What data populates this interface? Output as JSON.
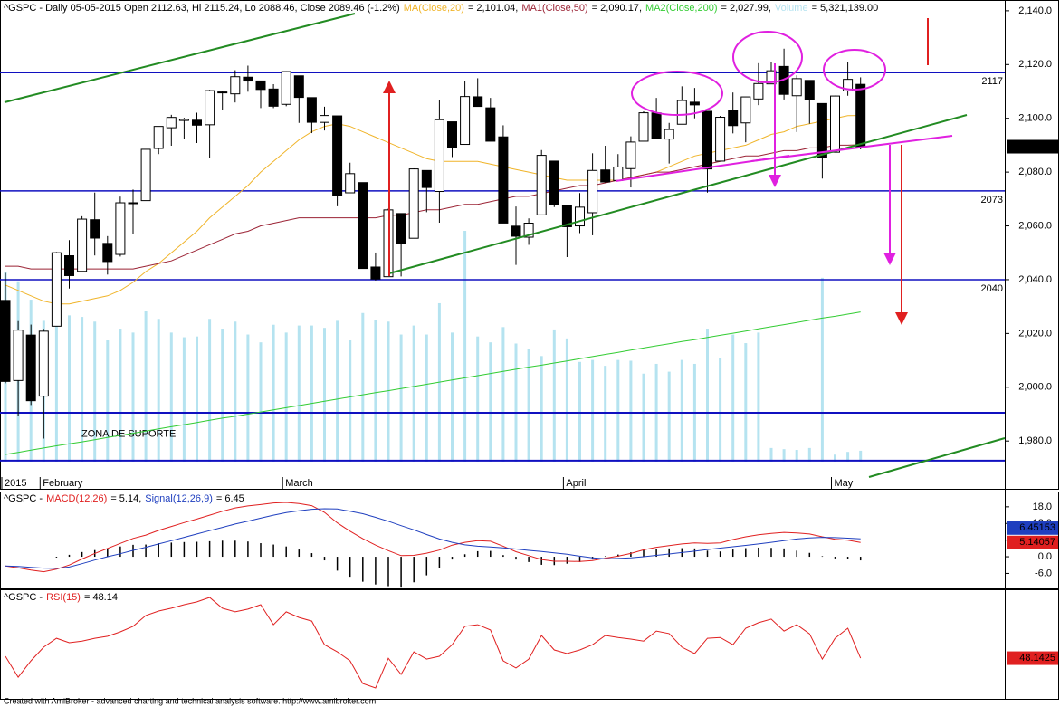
{
  "chart_data": [
    {
      "type": "candlestick",
      "title": "^GSPC - Daily 05-05-2015 Open 2112.63, Hi 2115.24, Lo 2088.46, Close 2089.46 (-1.2%)",
      "categories": [
        "2015",
        null,
        null,
        "February",
        null,
        null,
        null,
        null,
        null,
        null,
        null,
        null,
        null,
        null,
        null,
        null,
        null,
        null,
        null,
        null,
        null,
        null,
        "March",
        null,
        null,
        null,
        null,
        null,
        null,
        null,
        null,
        null,
        null,
        null,
        null,
        null,
        null,
        null,
        null,
        null,
        null,
        null,
        null,
        null,
        "April",
        null,
        null,
        null,
        null,
        null,
        null,
        null,
        null,
        null,
        null,
        null,
        null,
        null,
        null,
        null,
        null,
        null,
        null,
        null,
        null,
        "May",
        null,
        null
      ],
      "open": [
        2032.3,
        2002.5,
        2019.4,
        1996.7,
        2022.7,
        2048.9,
        2043.1,
        2062.3,
        2053.5,
        2049.4,
        2068.6,
        2069.4,
        2088.8,
        2096.5,
        2099.2,
        2099.3,
        2097.6,
        2109.8,
        2109.1,
        2115.3,
        2113.9,
        2110.9,
        2105.2,
        2115.8,
        2107.7,
        2098.5,
        2100.9,
        2072.3,
        2076.1,
        2044.7,
        2041.1,
        2064.6,
        2055.4,
        2080.6,
        2072.8,
        2098.7,
        2090.3,
        2108.0,
        2103.9,
        2093.1,
        2059.9,
        2055.8,
        2064.1,
        2084.1,
        2067.6,
        2060.0,
        2064.9,
        2080.8,
        2076.9,
        2081.3,
        2091.5,
        2102.0,
        2092.3,
        2097.8,
        2106.0,
        2102.6,
        2084.1,
        2102.8,
        2098.3,
        2107.2,
        2112.8,
        2119.3,
        2108.4,
        2114.1,
        2105.5,
        2087.4,
        2110.2,
        2112.63
      ],
      "high": [
        2042.5,
        2024.6,
        2023.3,
        2021.7,
        2050.3,
        2054.7,
        2063.6,
        2072.4,
        2056.2,
        2070.9,
        2073.5,
        2088.5,
        2097.0,
        2101.3,
        2100.2,
        2102.1,
        2110.6,
        2110.1,
        2117.9,
        2119.6,
        2113.9,
        2112.7,
        2117.5,
        2115.8,
        2107.7,
        2104.3,
        2100.9,
        2083.5,
        2076.1,
        2050.1,
        2066.4,
        2064.6,
        2081.4,
        2080.6,
        2106.9,
        2098.7,
        2113.9,
        2114.9,
        2107.6,
        2097.4,
        2067.2,
        2062.8,
        2088.2,
        2084.1,
        2067.6,
        2072.2,
        2087.0,
        2089.8,
        2086.7,
        2093.3,
        2102.6,
        2107.6,
        2098.3,
        2111.9,
        2111.3,
        2102.6,
        2100.9,
        2109.6,
        2108.0,
        2120.5,
        2120.9,
        2125.9,
        2116.0,
        2114.1,
        2105.5,
        2108.4,
        2120.9,
        2115.24
      ],
      "low": [
        2001.5,
        1989.2,
        1993.4,
        1980.9,
        2022.7,
        2036.7,
        2043.1,
        2049.0,
        2041.9,
        2048.6,
        2057.0,
        2069.4,
        2086.7,
        2089.8,
        2092.2,
        2090.8,
        2085.4,
        2103.0,
        2105.9,
        2109.9,
        2103.8,
        2103.8,
        2104.5,
        2098.3,
        2094.5,
        2095.5,
        2067.3,
        2072.2,
        2044.1,
        2039.7,
        2041.1,
        2041.2,
        2055.4,
        2065.1,
        2061.2,
        2085.6,
        2090.3,
        2104.4,
        2091.5,
        2061.0,
        2045.5,
        2052.96,
        2064.1,
        2067.0,
        2048.4,
        2057.3,
        2056.5,
        2076.1,
        2076.9,
        2074.3,
        2091.5,
        2092.3,
        2083.2,
        2097.8,
        2100.0,
        2072.4,
        2084.1,
        2094.4,
        2091.1,
        2104.9,
        2112.8,
        2107.0,
        2094.9,
        2098.0,
        2077.6,
        2087.4,
        2108.4,
        2088.46
      ],
      "close": [
        2002.16,
        2021.25,
        1994.99,
        2020.85,
        2050.03,
        2041.51,
        2062.52,
        2055.47,
        2046.74,
        2068.59,
        2068.53,
        2088.48,
        2096.99,
        2100.34,
        2099.68,
        2097.45,
        2110.3,
        2109.66,
        2115.48,
        2113.86,
        2110.74,
        2104.5,
        2117.39,
        2107.78,
        2098.53,
        2101.04,
        2071.26,
        2079.43,
        2044.16,
        2040.24,
        2065.95,
        2053.4,
        2081.19,
        2074.28,
        2099.5,
        2089.27,
        2108.1,
        2104.42,
        2091.5,
        2061.05,
        2056.15,
        2061.02,
        2086.24,
        2067.89,
        2059.69,
        2066.96,
        2080.62,
        2076.33,
        2081.9,
        2091.18,
        2102.06,
        2092.43,
        2095.84,
        2106.63,
        2104.99,
        2081.18,
        2100.4,
        2097.29,
        2107.96,
        2112.93,
        2117.69,
        2108.92,
        2114.76,
        2106.85,
        2085.51,
        2108.29,
        2114.49,
        2089.46
      ],
      "close_label": "2,089.46",
      "ylim": [
        1966.6,
        2144
      ],
      "yticks": [
        {
          "value": 2140,
          "label": "2,140.0"
        },
        {
          "value": 2120,
          "label": "2,120.0"
        },
        {
          "value": 2100,
          "label": "2,100.0"
        },
        {
          "value": 2080,
          "label": "2,080.0"
        },
        {
          "value": 2060,
          "label": "2,060.0"
        },
        {
          "value": 2040,
          "label": "2,040.0"
        },
        {
          "value": 2020,
          "label": "2,020.0"
        },
        {
          "value": 2000,
          "label": "2,000.0"
        },
        {
          "value": 1980,
          "label": "1,980.0"
        }
      ],
      "levels": [
        2117,
        2073,
        2040
      ],
      "support_lines": [
        1990.5,
        1972.7
      ],
      "support_label": "ZONA DE SUPORTE",
      "overlays": [
        {
          "name": "MA(Close,20)",
          "color": "#f0b429",
          "value_label": "= 2,101.04,",
          "values": [
            2038,
            2036,
            2034,
            2032,
            2031,
            2031,
            2032,
            2033,
            2034,
            2036,
            2039,
            2043,
            2046,
            2050,
            2054,
            2058,
            2063,
            2067,
            2071,
            2075,
            2080,
            2084,
            2088,
            2092,
            2095,
            2097,
            2098,
            2097,
            2095,
            2093,
            2091,
            2089,
            2087,
            2085,
            2084,
            2084,
            2084,
            2084,
            2083,
            2082,
            2081,
            2080,
            2079,
            2078,
            2077,
            2077,
            2077,
            2077,
            2077,
            2078,
            2079,
            2080,
            2082,
            2084,
            2086,
            2087,
            2088,
            2089,
            2090,
            2092,
            2094,
            2095,
            2097,
            2098,
            2099,
            2100,
            2101,
            2101.04
          ]
        },
        {
          "name": "MA1(Close,50)",
          "color": "#9b2335",
          "value_label": "= 2,090.17,",
          "values": [
            2045,
            2045,
            2044,
            2044,
            2044,
            2044,
            2044,
            2044,
            2044,
            2044,
            2044,
            2045,
            2046,
            2047,
            2049,
            2051,
            2053,
            2055,
            2057,
            2058,
            2060,
            2061,
            2062,
            2063,
            2063,
            2063,
            2063,
            2063,
            2063,
            2063,
            2064,
            2064,
            2065,
            2066,
            2066,
            2067,
            2068,
            2068,
            2069,
            2070,
            2071,
            2071,
            2072,
            2073,
            2074,
            2075,
            2075,
            2076,
            2077,
            2078,
            2079,
            2080,
            2080,
            2081,
            2082,
            2083,
            2084,
            2085,
            2086,
            2086,
            2087,
            2088,
            2088,
            2089,
            2089,
            2090,
            2090,
            2090.17
          ]
        },
        {
          "name": "MA2(Close,200)",
          "color": "#33cc33",
          "value_label": "= 2,027.99,",
          "values": [
            1975.0,
            1975.8,
            1976.6,
            1977.4,
            1978.2,
            1979.0,
            1979.7,
            1980.5,
            1981.3,
            1982.1,
            1982.9,
            1983.7,
            1984.5,
            1985.3,
            1986.1,
            1986.9,
            1987.7,
            1988.5,
            1989.2,
            1990.0,
            1990.8,
            1991.6,
            1992.4,
            1993.2,
            1994.0,
            1994.8,
            1995.6,
            1996.4,
            1997.2,
            1998.0,
            1998.7,
            1999.5,
            2000.3,
            2001.1,
            2001.9,
            2002.7,
            2003.5,
            2004.3,
            2005.1,
            2005.9,
            2006.7,
            2007.5,
            2008.2,
            2009.0,
            2009.8,
            2010.6,
            2011.4,
            2012.2,
            2013.0,
            2013.8,
            2014.6,
            2015.4,
            2016.2,
            2017.0,
            2017.7,
            2018.5,
            2019.3,
            2020.1,
            2020.9,
            2021.7,
            2022.5,
            2023.3,
            2024.1,
            2024.9,
            2025.7,
            2026.4,
            2027.2,
            2027.99
          ]
        }
      ],
      "volume": {
        "name": "Volume",
        "color": "#b5e3f0",
        "value_label": "= 5,321,139.00",
        "values": [
          4840000,
          4610000,
          4140000,
          3600000,
          4050000,
          3740000,
          3700000,
          3580000,
          3100000,
          3400000,
          3300000,
          3850000,
          3650000,
          3300000,
          3180000,
          3200000,
          3650000,
          3400000,
          3580000,
          3250000,
          3050000,
          3500000,
          3300000,
          3480000,
          3480000,
          3420000,
          3600000,
          3100000,
          3800000,
          3620000,
          3580000,
          3250000,
          3480000,
          3250000,
          4050000,
          3300000,
          5900000,
          3200000,
          3050000,
          3440000,
          3020000,
          2880000,
          2700000,
          3380000,
          3150000,
          2550000,
          2600000,
          2450000,
          2600000,
          2580000,
          2250000,
          2500000,
          2300000,
          2600000,
          2500000,
          3400000,
          2650000,
          3250000,
          3030000,
          3300000,
          350000,
          320000,
          300000,
          350000,
          4700000,
          180000,
          250000,
          280000
        ]
      }
    },
    {
      "type": "macd",
      "prefix": "^GSPC -",
      "ylim": [
        -11.4,
        23.5
      ],
      "yticks": [
        {
          "value": 18,
          "label": "18.0"
        },
        {
          "value": 12,
          "label": "12.0"
        },
        {
          "value": 6,
          "label": "6.0"
        },
        {
          "value": 0,
          "label": "0.0"
        },
        {
          "value": -6,
          "label": "-6.0"
        }
      ],
      "series": [
        {
          "name": "MACD(12,26)",
          "color": "#e02020",
          "value_label": "= 5.14,",
          "box_label": "5.14057",
          "values": [
            -3.3,
            -4.0,
            -4.8,
            -5.4,
            -4.5,
            -3.0,
            -0.8,
            1.2,
            3.0,
            4.8,
            6.6,
            7.8,
            9.5,
            10.9,
            12.3,
            13.6,
            15.0,
            16.4,
            17.6,
            18.3,
            18.8,
            19.4,
            19.6,
            19.2,
            18.4,
            16.0,
            12.2,
            9.2,
            6.5,
            4.2,
            2.2,
            0.4,
            0.5,
            1.3,
            2.4,
            4.2,
            5.2,
            5.8,
            5.6,
            3.8,
            1.8,
            0.4,
            -1.0,
            -1.6,
            -1.6,
            -1.7,
            -1.4,
            -0.5,
            0.2,
            1.2,
            2.5,
            3.4,
            4.0,
            4.6,
            5.0,
            4.8,
            5.0,
            6.2,
            7.2,
            7.9,
            8.4,
            8.8,
            8.6,
            8.2,
            7.2,
            6.3,
            6.0,
            5.14
          ]
        },
        {
          "name": "Signal(12,26,9)",
          "color": "#1f3fbf",
          "value_label": "= 6.45",
          "box_label": "6.45153",
          "values": [
            -3.3,
            -3.5,
            -3.8,
            -4.1,
            -4.2,
            -3.7,
            -2.5,
            -1.2,
            0,
            1.1,
            2.3,
            3.4,
            4.6,
            5.8,
            7.0,
            8.2,
            9.4,
            10.6,
            11.8,
            12.8,
            13.9,
            15.0,
            15.9,
            16.6,
            17.1,
            17.3,
            17.2,
            16.4,
            15.5,
            14.2,
            12.8,
            11.2,
            9.7,
            8.0,
            6.4,
            5.2,
            4.3,
            3.8,
            3.5,
            3.2,
            2.8,
            2.3,
            1.9,
            1.4,
            0.9,
            0.2,
            -0.4,
            -0.7,
            -0.6,
            -0.4,
            0,
            0.5,
            1.0,
            1.5,
            2.0,
            2.6,
            3.1,
            3.6,
            4.1,
            4.6,
            5.2,
            5.8,
            6.4,
            6.8,
            7.0,
            6.9,
            6.7,
            6.45
          ]
        }
      ],
      "histogram": {
        "color": "#000000",
        "values": [
          0,
          0,
          0,
          0,
          -0.3,
          0.7,
          1.7,
          2.4,
          3.0,
          3.7,
          4.3,
          4.4,
          4.9,
          5.1,
          5.3,
          5.4,
          5.6,
          5.8,
          5.8,
          5.5,
          4.9,
          4.4,
          3.7,
          2.6,
          1.3,
          -1.3,
          -5.0,
          -7.2,
          -9.0,
          -10.0,
          -10.6,
          -10.8,
          -9.2,
          -6.7,
          -4.0,
          -1.0,
          0.9,
          2.0,
          2.1,
          0.6,
          -1.0,
          -1.9,
          -2.9,
          -3.0,
          -2.5,
          -1.9,
          -1.0,
          0.2,
          0.8,
          1.6,
          2.5,
          2.9,
          3.0,
          3.1,
          3.0,
          2.2,
          1.9,
          2.6,
          3.1,
          3.3,
          3.2,
          3.0,
          2.2,
          1.4,
          0.2,
          -0.6,
          -0.7,
          -1.31
        ]
      }
    },
    {
      "type": "rsi",
      "prefix": "^GSPC -",
      "ylim": [
        33.5,
        72.6
      ],
      "series": [
        {
          "name": "RSI(15)",
          "color": "#e02020",
          "value_label": "= 48.14",
          "box_label": "48.1425",
          "values": [
            48.8,
            41.3,
            47.2,
            52.1,
            55.3,
            53.7,
            54.3,
            55.3,
            56.0,
            57.6,
            59.6,
            63.5,
            65.1,
            66.1,
            67.4,
            68.4,
            70.0,
            66.1,
            64.8,
            65.8,
            67.4,
            60.2,
            64.8,
            62.8,
            61.5,
            53.0,
            50.4,
            47.2,
            39.0,
            37.4,
            48.1,
            42.3,
            50.4,
            47.8,
            48.8,
            53.0,
            59.6,
            60.2,
            58.3,
            47.2,
            44.6,
            47.8,
            56.3,
            51.1,
            49.8,
            51.1,
            53.0,
            56.3,
            55.6,
            55.0,
            54.3,
            57.9,
            57.0,
            52.1,
            49.8,
            55.3,
            55.6,
            53.0,
            58.9,
            60.9,
            62.2,
            57.9,
            60.2,
            56.9,
            47.8,
            55.3,
            58.9,
            48.14
          ]
        }
      ]
    }
  ],
  "footer": "Created with AmiBroker - advanced charting and technical analysis software. http://www.amibroker.com"
}
